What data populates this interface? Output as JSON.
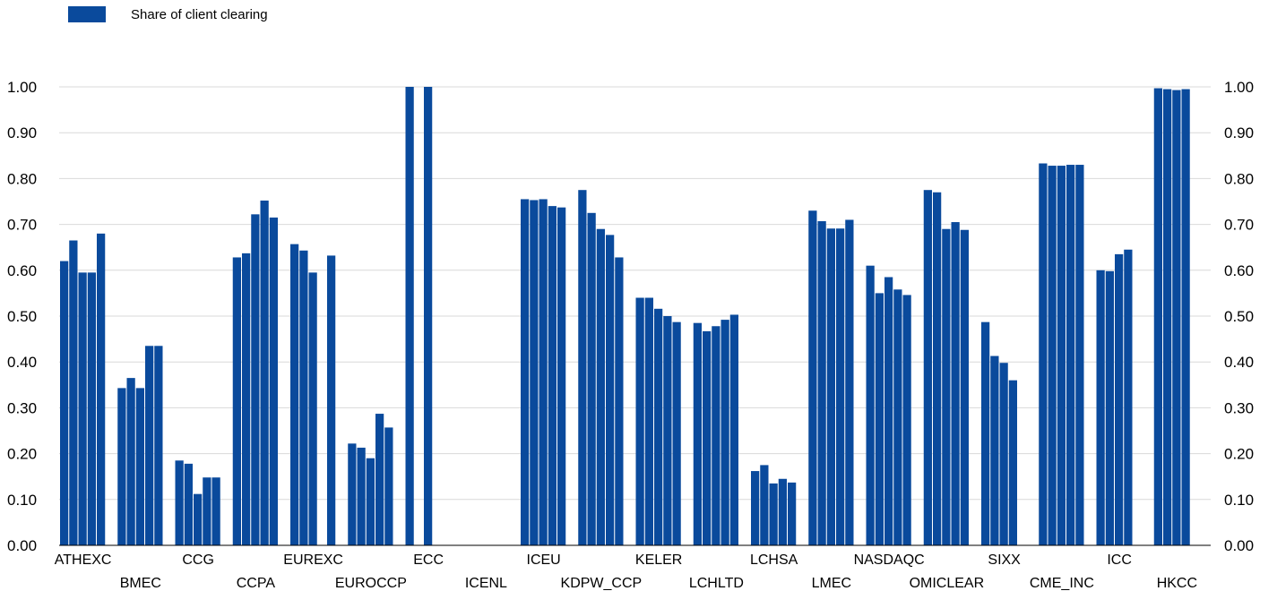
{
  "colors": {
    "bar": "#0a4a9c",
    "grid": "#d9d9d9",
    "axis": "#000000"
  },
  "legend": {
    "label": "Share of client clearing",
    "position": "top-left"
  },
  "chart_data": {
    "type": "bar",
    "grid": true,
    "ylim": [
      0,
      1.0
    ],
    "yticks": [
      "0.00",
      "0.10",
      "0.20",
      "0.30",
      "0.40",
      "0.50",
      "0.60",
      "0.70",
      "0.80",
      "0.90",
      "1.00"
    ],
    "series": [
      {
        "name": "Share of client clearing"
      }
    ],
    "groups": [
      {
        "label": "ATHEXC",
        "values": [
          0.62,
          0.665,
          0.595,
          0.595,
          0.68
        ]
      },
      {
        "label": "BMEC",
        "values": [
          0.343,
          0.365,
          0.343,
          0.435,
          0.435
        ]
      },
      {
        "label": "CCG",
        "values": [
          0.185,
          0.178,
          0.112,
          0.148,
          0.148
        ]
      },
      {
        "label": "CCPA",
        "values": [
          0.628,
          0.637,
          0.722,
          0.752,
          0.715
        ]
      },
      {
        "label": "EUREXC",
        "values": [
          0.657,
          0.643,
          0.595,
          0,
          0.632
        ]
      },
      {
        "label": "EUROCCP",
        "values": [
          0.222,
          0.213,
          0.19,
          0.287,
          0.257
        ]
      },
      {
        "label": "ECC",
        "values": [
          1.0,
          0,
          1.0,
          0,
          0
        ]
      },
      {
        "label": "ICENL",
        "values": [
          0,
          0,
          0,
          0,
          0
        ]
      },
      {
        "label": "ICEU",
        "values": [
          0.755,
          0.753,
          0.755,
          0.74,
          0.737
        ]
      },
      {
        "label": "KDPW_CCP",
        "values": [
          0.775,
          0.725,
          0.69,
          0.677,
          0.628
        ]
      },
      {
        "label": "KELER",
        "values": [
          0.54,
          0.54,
          0.516,
          0.5,
          0.487
        ]
      },
      {
        "label": "LCHLTD",
        "values": [
          0.485,
          0.467,
          0.478,
          0.492,
          0.503
        ]
      },
      {
        "label": "LCHSA",
        "values": [
          0.162,
          0.175,
          0.135,
          0.145,
          0.137
        ]
      },
      {
        "label": "LMEC",
        "values": [
          0.73,
          0.707,
          0.691,
          0.691,
          0.71
        ]
      },
      {
        "label": "NASDAQC",
        "values": [
          0.61,
          0.55,
          0.585,
          0.558,
          0.546
        ]
      },
      {
        "label": "OMICLEAR",
        "values": [
          0.775,
          0.77,
          0.69,
          0.705,
          0.688
        ]
      },
      {
        "label": "SIXX",
        "values": [
          0.487,
          0.413,
          0.398,
          0.36,
          0
        ]
      },
      {
        "label": "CME_INC",
        "values": [
          0.833,
          0.828,
          0.828,
          0.83,
          0.83
        ]
      },
      {
        "label": "ICC",
        "values": [
          0.6,
          0.598,
          0.635,
          0.645,
          0
        ]
      },
      {
        "label": "HKCC",
        "values": [
          0.997,
          0.995,
          0.993,
          0.995,
          0
        ]
      }
    ]
  }
}
